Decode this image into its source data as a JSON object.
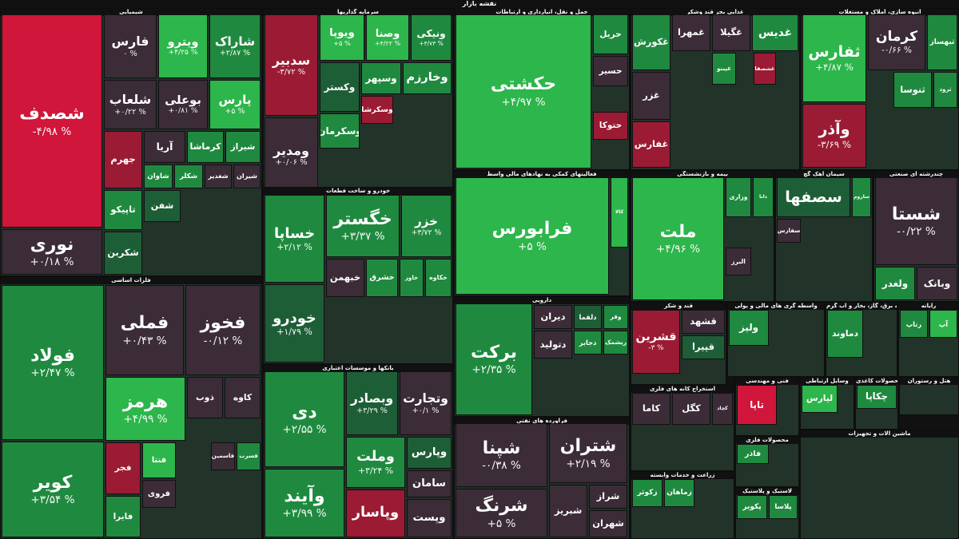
{
  "header": {
    "title": "نقشه بازار"
  },
  "sectors": [
    {
      "title": "شیمیایی",
      "tiles": [
        {
          "name": "شصدف",
          "change": "-۴/۹۸ %",
          "color": "#d0163a"
        },
        {
          "name": "نوری",
          "change": "+۰/۱۸ %",
          "color": "#3b2c37"
        },
        {
          "name": "فارس",
          "change": "۰ %",
          "color": "#3b2c37"
        },
        {
          "name": "ویترو",
          "change": "+۴/۲۵ %",
          "color": "#2db64b"
        },
        {
          "name": "شاراک",
          "change": "+۲/۸۷ %",
          "color": "#1f8a3f"
        },
        {
          "name": "شلعاب",
          "change": "+۰/۲۲ %",
          "color": "#3b2c37"
        },
        {
          "name": "بوعلی",
          "change": "+۰/۸۱ %",
          "color": "#3b2c37"
        },
        {
          "name": "پارس",
          "change": "+۵ %",
          "color": "#2db64b"
        },
        {
          "name": "جهرم",
          "color": "#9b1b34"
        },
        {
          "name": "آریا",
          "color": "#3b2c37"
        },
        {
          "name": "کرماشا",
          "color": "#1f8a3f"
        },
        {
          "name": "شیراز",
          "color": "#1f8a3f"
        },
        {
          "name": "تاپیکو",
          "color": "#1f8a3f"
        },
        {
          "name": "شکربن",
          "color": "#1e5e37"
        },
        {
          "name": "شاوان",
          "color": "#1f8a3f"
        },
        {
          "name": "شکلر",
          "color": "#1f8a3f"
        },
        {
          "name": "شغدیر",
          "color": "#3b2c37"
        },
        {
          "name": "شیران",
          "color": "#3b2c37"
        },
        {
          "name": "شفن",
          "color": "#1e5e37"
        }
      ]
    },
    {
      "title": "فلزات اساسی",
      "tiles": [
        {
          "name": "فولاد",
          "change": "+۲/۴۷ %",
          "color": "#1f8a3f"
        },
        {
          "name": "کویر",
          "change": "+۳/۵۴ %",
          "color": "#1f8a3f"
        },
        {
          "name": "فملی",
          "change": "+۰/۴۳ %",
          "color": "#3b2c37"
        },
        {
          "name": "فخوز",
          "change": "-۰/۱۲ %",
          "color": "#3b2c37"
        },
        {
          "name": "هرمز",
          "change": "+۴/۹۹ %",
          "color": "#2db64b"
        },
        {
          "name": "ذوب",
          "color": "#3b2c37"
        },
        {
          "name": "کاوه",
          "color": "#3b2c37"
        },
        {
          "name": "فجر",
          "color": "#9b1b34"
        },
        {
          "name": "فایرا",
          "color": "#1f8a3f"
        },
        {
          "name": "فنتا",
          "color": "#2db64b"
        },
        {
          "name": "فروی",
          "color": "#3b2c37"
        },
        {
          "name": "فاسمین",
          "color": "#3b2c37"
        },
        {
          "name": "فسرب",
          "color": "#1f8a3f"
        }
      ]
    },
    {
      "title": "سرمایه گذاریها",
      "tiles": [
        {
          "name": "سدبیر",
          "change": "-۳/۷۲ %",
          "color": "#9b1b34"
        },
        {
          "name": "ومدیر",
          "change": "+۰/۰۶ %",
          "color": "#3b2c37"
        },
        {
          "name": "ویوپا",
          "change": "+۵ %",
          "color": "#2db64b"
        },
        {
          "name": "وصنا",
          "change": "+۴/۲۲ %",
          "color": "#2db64b"
        },
        {
          "name": "ونیکی",
          "change": "+۳/۷۳ %",
          "color": "#1f8a3f"
        },
        {
          "name": "وکستر",
          "color": "#1e5e37"
        },
        {
          "name": "وسکرمان",
          "color": "#1f8a3f"
        },
        {
          "name": "وسپهر",
          "color": "#1f8a3f"
        },
        {
          "name": "وخارزم",
          "color": "#1f8a3f"
        },
        {
          "name": "وسکرشا",
          "color": "#9b1b34"
        }
      ]
    },
    {
      "title": "خودرو و ساخت قطعات",
      "tiles": [
        {
          "name": "خساپا",
          "change": "+۲/۱۲ %",
          "color": "#1f8a3f"
        },
        {
          "name": "خودرو",
          "change": "+۱/۷۹ %",
          "color": "#1e5e37"
        },
        {
          "name": "خگستر",
          "change": "+۳/۳۷ %",
          "color": "#1f8a3f"
        },
        {
          "name": "خزر",
          "change": "+۳/۷۲ %",
          "color": "#1f8a3f"
        },
        {
          "name": "خبهمن",
          "color": "#3b2c37"
        },
        {
          "name": "خشرق",
          "color": "#1f8a3f"
        },
        {
          "name": "خاور",
          "color": "#1f8a3f"
        },
        {
          "name": "خکاوه",
          "color": "#1f8a3f"
        }
      ]
    },
    {
      "title": "بانکها و موسسات اعتباری",
      "tiles": [
        {
          "name": "دی",
          "change": "+۲/۵۵ %",
          "color": "#1f8a3f"
        },
        {
          "name": "وآیند",
          "change": "+۳/۹۹ %",
          "color": "#1f8a3f"
        },
        {
          "name": "وبصادر",
          "change": "+۳/۲۹ %",
          "color": "#1e5e37"
        },
        {
          "name": "وتجارت",
          "change": "+۰/۱ %",
          "color": "#3b2c37"
        },
        {
          "name": "وملت",
          "change": "+۳/۲۴ %",
          "color": "#1f8a3f"
        },
        {
          "name": "وپاسار",
          "color": "#9b1b34"
        },
        {
          "name": "وپارس",
          "color": "#1e5e37"
        },
        {
          "name": "سامان",
          "color": "#3b2c37"
        },
        {
          "name": "وپست",
          "color": "#3b2c37"
        }
      ]
    },
    {
      "title": "حمل و نقل، انبارداری و ارتباطات",
      "tiles": [
        {
          "name": "حکشتی",
          "change": "+۴/۹۷ %",
          "color": "#2db64b"
        },
        {
          "name": "حریل",
          "color": "#1f8a3f"
        },
        {
          "name": "حسیر",
          "color": "#3b2c37"
        },
        {
          "name": "حتوکا",
          "color": "#9b1b34"
        }
      ]
    },
    {
      "title": "فعالیتهای کمکی به نهادهای مالی واسط",
      "tiles": [
        {
          "name": "فرابورس",
          "change": "+۵ %",
          "color": "#2db64b"
        },
        {
          "name": "کالا",
          "color": "#2db64b"
        }
      ]
    },
    {
      "title": "دارویی",
      "tiles": [
        {
          "name": "برکت",
          "change": "+۲/۳۵ %",
          "color": "#1f8a3f"
        },
        {
          "name": "وقر",
          "color": "#1f8a3f"
        },
        {
          "name": "دلقما",
          "color": "#1e5e37"
        },
        {
          "name": "دیران",
          "color": "#3b2c37"
        },
        {
          "name": "ریشمک",
          "color": "#1f8a3f"
        },
        {
          "name": "دجابر",
          "color": "#1f8a3f"
        },
        {
          "name": "دتولید",
          "color": "#3b2c37"
        }
      ]
    },
    {
      "title": "فرآورده های نفتی",
      "tiles": [
        {
          "name": "شپنا",
          "change": "-۰/۳۸ %",
          "color": "#3b2c37"
        },
        {
          "name": "شرنگ",
          "change": "+۵ %",
          "color": "#3b2c37"
        },
        {
          "name": "شتران",
          "change": "+۲/۱۹ %",
          "color": "#3b2c37"
        },
        {
          "name": "شبریز",
          "color": "#3b2c37"
        },
        {
          "name": "شراز",
          "color": "#3b2c37"
        },
        {
          "name": "شهران",
          "color": "#3b2c37"
        }
      ]
    },
    {
      "title": "غذایی بجز قند وشکر",
      "tiles": [
        {
          "name": "غکورش",
          "color": "#1f8a3f"
        },
        {
          "name": "غزر",
          "color": "#3b2c37"
        },
        {
          "name": "غفارس",
          "color": "#9b1b34"
        },
        {
          "name": "غمهرا",
          "color": "#3b2c37"
        },
        {
          "name": "غگیلا",
          "color": "#3b2c37"
        },
        {
          "name": "غدیس",
          "color": "#1f8a3f"
        },
        {
          "name": "غپینو",
          "color": "#1f8a3f"
        },
        {
          "name": "غشصفا",
          "color": "#9b1b34"
        }
      ]
    },
    {
      "title": "انبوه سازی، املاک و مستغلات",
      "tiles": [
        {
          "name": "ثفارس",
          "change": "+۴/۸۷ %",
          "color": "#2db64b"
        },
        {
          "name": "وآذر",
          "change": "-۳/۶۹ %",
          "color": "#9b1b34"
        },
        {
          "name": "کرمان",
          "change": "-۰/۶۶ %",
          "color": "#3b2c37"
        },
        {
          "name": "ثبهساز",
          "color": "#1f8a3f"
        },
        {
          "name": "ثنوسا",
          "color": "#1f8a3f"
        },
        {
          "name": "ثرود",
          "color": "#1f8a3f"
        }
      ]
    },
    {
      "title": "بیمه و بازنشستگی",
      "tiles": [
        {
          "name": "ملت",
          "change": "+۴/۹۶ %",
          "color": "#2db64b"
        },
        {
          "name": "وزاری",
          "color": "#1f8a3f"
        },
        {
          "name": "دانا",
          "color": "#1f8a3f"
        },
        {
          "name": "البرز",
          "color": "#3b2c37"
        }
      ]
    },
    {
      "title": "سیمان آهک گچ",
      "tiles": [
        {
          "name": "سصفها",
          "color": "#1e5e37"
        },
        {
          "name": "ساروم",
          "color": "#1f8a3f"
        },
        {
          "name": "سفارس",
          "color": "#3b2c37"
        }
      ]
    },
    {
      "title": "چندرشته ای صنعتی",
      "tiles": [
        {
          "name": "شستا",
          "change": "-۰/۲۲ %",
          "color": "#3b2c37"
        },
        {
          "name": "ولغدر",
          "color": "#1f8a3f"
        },
        {
          "name": "وبانک",
          "color": "#3b2c37"
        }
      ]
    },
    {
      "title": "قند و شکر",
      "tiles": [
        {
          "name": "قشرین",
          "change": "-۳ %",
          "color": "#9b1b34"
        },
        {
          "name": "قشهد",
          "color": "#3b2c37"
        },
        {
          "name": "قپیرا",
          "color": "#1e5e37"
        }
      ]
    },
    {
      "title": "واسطه گری های مالی و پولی",
      "tiles": [
        {
          "name": "ولیز",
          "color": "#1f8a3f"
        }
      ]
    },
    {
      "title": "عرضه برق، گاز، بخار و آب گرم",
      "tiles": [
        {
          "name": "دماوند",
          "color": "#1f8a3f"
        }
      ]
    },
    {
      "title": "رایانه",
      "tiles": [
        {
          "name": "رتاپ",
          "color": "#1f8a3f"
        },
        {
          "name": "آپ",
          "color": "#2db64b"
        }
      ]
    },
    {
      "title": "استخراج کانه های فلزی",
      "tiles": [
        {
          "name": "کاما",
          "color": "#3b2c37"
        },
        {
          "name": "کگل",
          "color": "#3b2c37"
        },
        {
          "name": "کچاد",
          "color": "#3b2c37"
        }
      ]
    },
    {
      "title": "فنی و مهندسی",
      "tiles": [
        {
          "name": "تاپا",
          "color": "#d0163a"
        }
      ]
    },
    {
      "title": "وسایل ارتباطی",
      "tiles": [
        {
          "name": "لپارس",
          "color": "#2db64b"
        }
      ]
    },
    {
      "title": "محصولات کاغذی",
      "tiles": [
        {
          "name": "چکاپا",
          "color": "#1f8a3f"
        }
      ]
    },
    {
      "title": "هتل و رستوران",
      "tiles": []
    },
    {
      "title": "زراعت و خدمات وابسته",
      "tiles": [
        {
          "name": "زکوثر",
          "color": "#1f8a3f"
        },
        {
          "name": "زماهان",
          "color": "#1f8a3f"
        }
      ]
    },
    {
      "title": "محصولات فلزی",
      "tiles": [
        {
          "name": "فاذر",
          "color": "#1f8a3f"
        }
      ]
    },
    {
      "title": "لاستیک و پلاستیک",
      "tiles": [
        {
          "name": "پکویر",
          "color": "#1f8a3f"
        },
        {
          "name": "پلاسا",
          "color": "#1f8a3f"
        }
      ]
    },
    {
      "title": "ماشین آلات و تجهیزات",
      "tiles": []
    }
  ]
}
